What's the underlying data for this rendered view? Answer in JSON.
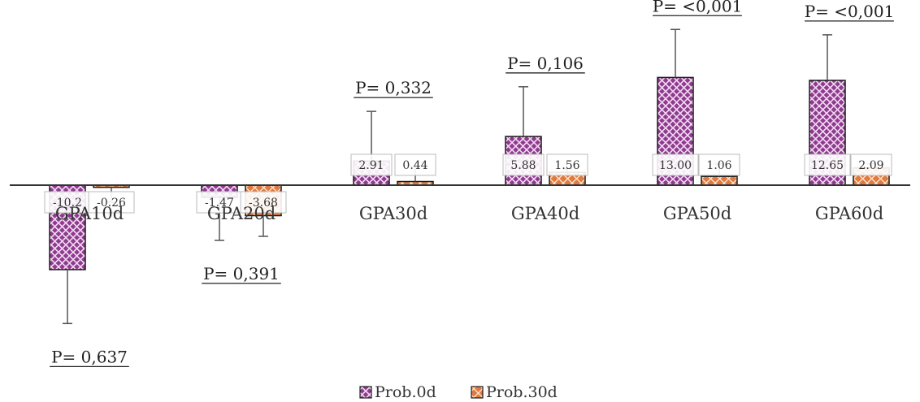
{
  "chart_data": {
    "type": "bar",
    "categories": [
      "GPA10d",
      "GPA20d",
      "GPA30d",
      "GPA40d",
      "GPA50d",
      "GPA60d"
    ],
    "series": [
      {
        "name": "Prob.0d",
        "color": "#8e3a8e",
        "values": [
          -10.2,
          -1.47,
          2.91,
          5.88,
          13.0,
          12.65
        ],
        "labels": [
          "-10.2",
          "-1.47",
          "2.91",
          "5.88",
          "13.00",
          "12.65"
        ],
        "errors": [
          6.5,
          5.2,
          6.0,
          6.0,
          5.8,
          5.5
        ]
      },
      {
        "name": "Prob.30d",
        "color": "#e07b3f",
        "values": [
          -0.26,
          -3.68,
          0.44,
          1.56,
          1.06,
          2.09
        ],
        "labels": [
          "-0.26",
          "-3.68",
          "0.44",
          "1.56",
          "1.06",
          "2.09"
        ],
        "errors": [
          1.8,
          2.5,
          1.8,
          0.4,
          1.5,
          0.5
        ]
      }
    ],
    "p_values": [
      {
        "category": "GPA10d",
        "text": "P= 0,637",
        "side": "below"
      },
      {
        "category": "GPA20d",
        "text": "P= 0,391",
        "side": "below"
      },
      {
        "category": "GPA30d",
        "text": "P= 0,332",
        "side": "above"
      },
      {
        "category": "GPA40d",
        "text": "P= 0,106",
        "side": "above"
      },
      {
        "category": "GPA50d",
        "text": "P= <0,001",
        "side": "above"
      },
      {
        "category": "GPA60d",
        "text": "P= <0,001",
        "side": "above"
      }
    ],
    "ylim": [
      -14,
      21
    ],
    "grid": false,
    "legend_position": "bottom-center",
    "title": "",
    "xlabel": "",
    "ylabel": ""
  }
}
